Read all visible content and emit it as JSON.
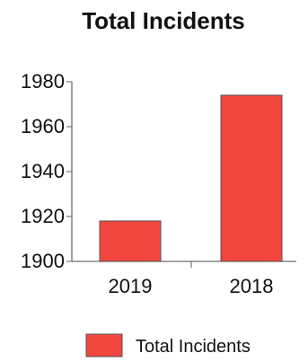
{
  "chart_data": {
    "type": "bar",
    "title": "Total Incidents",
    "categories": [
      "2019",
      "2018"
    ],
    "series": [
      {
        "name": "Total Incidents",
        "values": [
          1918,
          1974
        ],
        "color": "#f0463d"
      }
    ],
    "ylim": [
      1900,
      1980
    ],
    "yticks": [
      "1900",
      "1920",
      "1940",
      "1960",
      "1980"
    ],
    "xlabel": "",
    "ylabel": "",
    "grid": false,
    "legend": "bottom-right"
  }
}
